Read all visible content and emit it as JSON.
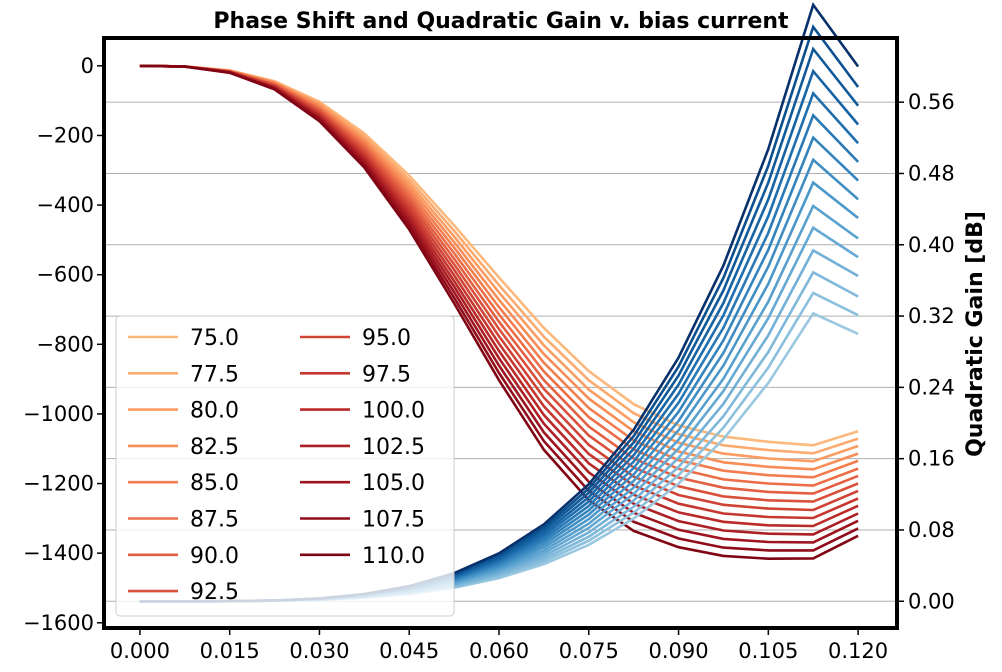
{
  "chart_data": {
    "type": "line",
    "title": "Phase Shift and Quadratic Gain v. bias current",
    "xlabel": "",
    "ylabel_left": "",
    "ylabel_right": "Quadratic Gain [dB]",
    "x": [
      0.0,
      0.0075,
      0.015,
      0.0225,
      0.03,
      0.0375,
      0.045,
      0.0525,
      0.06,
      0.0675,
      0.075,
      0.0825,
      0.09,
      0.0975,
      0.105,
      0.1125,
      0.12
    ],
    "xlim": [
      -0.006,
      0.1265
    ],
    "xticks": [
      "0.000",
      "0.015",
      "0.030",
      "0.045",
      "0.060",
      "0.075",
      "0.090",
      "0.105",
      "0.120"
    ],
    "ylim_left": [
      -1615,
      80
    ],
    "yticks_left": [
      "0",
      "−200",
      "−400",
      "−600",
      "−800",
      "−1000",
      "−1200",
      "−1400",
      "−1600"
    ],
    "ylim_right": [
      -0.03,
      0.632
    ],
    "yticks_right": [
      "0.00",
      "0.08",
      "0.16",
      "0.24",
      "0.32",
      "0.40",
      "0.48",
      "0.56"
    ],
    "grid": "horizontal, right axis",
    "legend_placement": "lower-left",
    "legend_columns": 2,
    "phase_series": [
      {
        "name": "75.0",
        "color": "#fdb97d",
        "values": [
          0,
          -1.6,
          -13,
          -44,
          -103,
          -194,
          -315,
          -458,
          -608,
          -753,
          -877,
          -972,
          -1033,
          -1065,
          -1080,
          -1090,
          -1050
        ]
      },
      {
        "name": "77.5",
        "color": "#fcab70",
        "values": [
          0,
          -1.7,
          -13.5,
          -45.7,
          -107,
          -201,
          -327,
          -474,
          -630,
          -778,
          -903,
          -998,
          -1058,
          -1090,
          -1104,
          -1113,
          -1071
        ]
      },
      {
        "name": "80.0",
        "color": "#fb9c62",
        "values": [
          0,
          -1.7,
          -14,
          -47.4,
          -111,
          -208,
          -338,
          -490,
          -651,
          -803,
          -930,
          -1024,
          -1083,
          -1114,
          -1128,
          -1136,
          -1092
        ]
      },
      {
        "name": "82.5",
        "color": "#f78d57",
        "values": [
          0,
          -1.8,
          -14.5,
          -49.1,
          -115,
          -215,
          -349,
          -506,
          -672,
          -828,
          -956,
          -1050,
          -1108,
          -1139,
          -1152,
          -1159,
          -1114
        ]
      },
      {
        "name": "85.0",
        "color": "#f27d4f",
        "values": [
          0,
          -1.8,
          -15,
          -50.8,
          -119,
          -222,
          -360,
          -522,
          -693,
          -853,
          -983,
          -1076,
          -1133,
          -1163,
          -1176,
          -1182,
          -1135
        ]
      },
      {
        "name": "87.5",
        "color": "#ec6e48",
        "values": [
          0,
          -1.9,
          -15.5,
          -52.5,
          -123,
          -229,
          -371,
          -538,
          -714,
          -878,
          -1009,
          -1102,
          -1158,
          -1188,
          -1200,
          -1206,
          -1157
        ]
      },
      {
        "name": "90.0",
        "color": "#e45f42",
        "values": [
          0,
          -1.9,
          -16,
          -54.2,
          -127,
          -236,
          -382,
          -554,
          -735,
          -903,
          -1036,
          -1128,
          -1183,
          -1212,
          -1224,
          -1229,
          -1178
        ]
      },
      {
        "name": "92.5",
        "color": "#da513b",
        "values": [
          0,
          -2.0,
          -16.5,
          -55.9,
          -131,
          -243,
          -393,
          -570,
          -756,
          -928,
          -1062,
          -1154,
          -1208,
          -1237,
          -1248,
          -1252,
          -1200
        ]
      },
      {
        "name": "95.0",
        "color": "#d04435",
        "values": [
          0,
          -2.0,
          -17,
          -57.6,
          -135,
          -250,
          -404,
          -586,
          -777,
          -953,
          -1089,
          -1180,
          -1233,
          -1261,
          -1272,
          -1276,
          -1221
        ]
      },
      {
        "name": "97.5",
        "color": "#c5372f",
        "values": [
          0,
          -2.1,
          -17.5,
          -59.3,
          -139,
          -257,
          -415,
          -602,
          -798,
          -978,
          -1115,
          -1206,
          -1258,
          -1286,
          -1296,
          -1299,
          -1243
        ]
      },
      {
        "name": "100.0",
        "color": "#b92a29",
        "values": [
          0,
          -2.1,
          -18,
          -61,
          -143,
          -264,
          -426,
          -618,
          -819,
          -1003,
          -1142,
          -1232,
          -1283,
          -1310,
          -1320,
          -1322,
          -1264
        ]
      },
      {
        "name": "102.5",
        "color": "#ac1f24",
        "values": [
          0,
          -2.2,
          -18.5,
          -62.7,
          -147,
          -271,
          -437,
          -634,
          -840,
          -1028,
          -1168,
          -1258,
          -1308,
          -1335,
          -1344,
          -1346,
          -1286
        ]
      },
      {
        "name": "105.0",
        "color": "#9e151f",
        "values": [
          0,
          -2.2,
          -19,
          -64.4,
          -151,
          -278,
          -448,
          -650,
          -861,
          -1053,
          -1195,
          -1284,
          -1333,
          -1359,
          -1368,
          -1369,
          -1307
        ]
      },
      {
        "name": "107.5",
        "color": "#900c1a",
        "values": [
          0,
          -2.3,
          -19.5,
          -66.1,
          -155,
          -285,
          -459,
          -666,
          -882,
          -1078,
          -1221,
          -1310,
          -1358,
          -1384,
          -1392,
          -1392,
          -1329
        ]
      },
      {
        "name": "110.0",
        "color": "#800514",
        "values": [
          0,
          -2.3,
          -20,
          -67.8,
          -159,
          -292,
          -470,
          -682,
          -903,
          -1103,
          -1248,
          -1336,
          -1383,
          -1408,
          -1416,
          -1415,
          -1350
        ]
      }
    ],
    "gain_series": [
      {
        "name": "75.0",
        "color": "#9ac8e0",
        "values": [
          0,
          1e-05,
          0.0001,
          0.0005,
          0.0016,
          0.0039,
          0.0082,
          0.0152,
          0.026,
          0.0416,
          0.0634,
          0.0929,
          0.132,
          0.1818,
          0.2449,
          0.323,
          0.3
        ]
      },
      {
        "name": "77.5",
        "color": "#8cc0dd",
        "values": [
          0,
          1e-05,
          0.0001,
          0.0005,
          0.0017,
          0.0042,
          0.0088,
          0.0163,
          0.0278,
          0.0445,
          0.0679,
          0.0995,
          0.1414,
          0.1947,
          0.2622,
          0.3459,
          0.321
        ]
      },
      {
        "name": "80.0",
        "color": "#7fb8da",
        "values": [
          0,
          1e-05,
          0.0001,
          0.0006,
          0.0018,
          0.0045,
          0.0094,
          0.0174,
          0.0297,
          0.0475,
          0.0724,
          0.1061,
          0.1508,
          0.2077,
          0.2797,
          0.369,
          0.342
        ]
      },
      {
        "name": "82.5",
        "color": "#72b0d7",
        "values": [
          0,
          1e-05,
          0.0001,
          0.0006,
          0.0019,
          0.0048,
          0.01,
          0.0186,
          0.0317,
          0.0507,
          0.0773,
          0.1132,
          0.1609,
          0.2216,
          0.2984,
          0.3937,
          0.365
        ]
      },
      {
        "name": "85.0",
        "color": "#64a8d3",
        "values": [
          0,
          1e-05,
          0.0001,
          0.0006,
          0.0021,
          0.0051,
          0.0107,
          0.0198,
          0.0337,
          0.0539,
          0.0823,
          0.1205,
          0.1713,
          0.2358,
          0.3176,
          0.419,
          0.386
        ]
      },
      {
        "name": "87.5",
        "color": "#58a0ce",
        "values": [
          0,
          1e-05,
          0.0001,
          0.0007,
          0.0022,
          0.0054,
          0.0113,
          0.0209,
          0.0357,
          0.0571,
          0.0871,
          0.1275,
          0.1813,
          0.2496,
          0.3362,
          0.4435,
          0.407
        ]
      },
      {
        "name": "90.0",
        "color": "#4b97c9",
        "values": [
          0,
          1e-05,
          0.0001,
          0.0007,
          0.0023,
          0.0057,
          0.012,
          0.0222,
          0.0378,
          0.0605,
          0.0922,
          0.1351,
          0.192,
          0.2644,
          0.3562,
          0.4698,
          0.43
        ]
      },
      {
        "name": "92.5",
        "color": "#3f8dc3",
        "values": [
          0,
          1e-05,
          0.0001,
          0.0007,
          0.0024,
          0.006,
          0.0126,
          0.0234,
          0.0398,
          0.0638,
          0.0972,
          0.1424,
          0.2024,
          0.2787,
          0.3755,
          0.4953,
          0.451
        ]
      },
      {
        "name": "95.0",
        "color": "#3383bd",
        "values": [
          0,
          1e-05,
          0.0001,
          0.0008,
          0.0025,
          0.0063,
          0.0132,
          0.0245,
          0.0418,
          0.067,
          0.1021,
          0.1496,
          0.2126,
          0.2927,
          0.3944,
          0.5202,
          0.472
        ]
      },
      {
        "name": "97.5",
        "color": "#2979b7",
        "values": [
          0,
          1e-05,
          0.0001,
          0.0008,
          0.0026,
          0.0066,
          0.0138,
          0.0257,
          0.0438,
          0.0702,
          0.107,
          0.1568,
          0.2228,
          0.3068,
          0.4133,
          0.5451,
          0.493
        ]
      },
      {
        "name": "100.0",
        "color": "#1f6eae",
        "values": [
          0,
          1e-05,
          0.0001,
          0.0008,
          0.0028,
          0.0069,
          0.0144,
          0.0268,
          0.0458,
          0.0734,
          0.1119,
          0.1639,
          0.2329,
          0.3207,
          0.432,
          0.5698,
          0.514
        ]
      },
      {
        "name": "102.5",
        "color": "#1764a5",
        "values": [
          0,
          1e-05,
          0.0001,
          0.0009,
          0.0029,
          0.0072,
          0.0151,
          0.028,
          0.0478,
          0.0766,
          0.1168,
          0.1711,
          0.2431,
          0.3347,
          0.4509,
          0.5947,
          0.535
        ]
      },
      {
        "name": "105.0",
        "color": "#115a9a",
        "values": [
          0,
          1e-05,
          0.0001,
          0.0009,
          0.003,
          0.0075,
          0.0157,
          0.0292,
          0.0498,
          0.0798,
          0.1217,
          0.1783,
          0.2533,
          0.3488,
          0.4698,
          0.6197,
          0.556
        ]
      },
      {
        "name": "107.5",
        "color": "#0b508e",
        "values": [
          0,
          1e-05,
          0.0001,
          0.0009,
          0.0031,
          0.0078,
          0.0163,
          0.0303,
          0.0518,
          0.083,
          0.1265,
          0.1853,
          0.2634,
          0.3627,
          0.4886,
          0.6444,
          0.577
        ]
      },
      {
        "name": "110.0",
        "color": "#08306b",
        "values": [
          0,
          1e-05,
          0.0001,
          0.001,
          0.0032,
          0.0081,
          0.0169,
          0.0315,
          0.0538,
          0.0862,
          0.1314,
          0.1924,
          0.2735,
          0.3766,
          0.5073,
          0.6691,
          0.6
        ]
      }
    ]
  }
}
